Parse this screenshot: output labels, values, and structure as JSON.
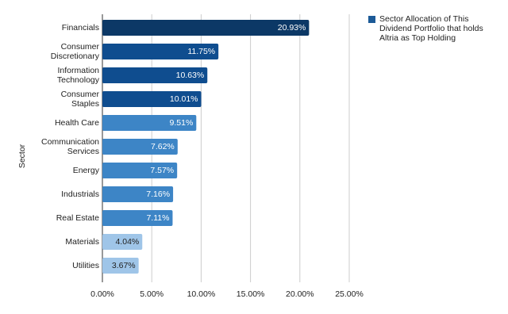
{
  "chart_data": {
    "type": "bar",
    "orientation": "horizontal",
    "y_label": "Sector",
    "categories": [
      "Financials",
      "Consumer\nDiscretionary",
      "Information\nTechnology",
      "Consumer\nStaples",
      "Health Care",
      "Communication\nServices",
      "Energy",
      "Industrials",
      "Real Estate",
      "Materials",
      "Utilities"
    ],
    "series": [
      {
        "name": "Sector Allocation of This\nDividend Portfolio that holds\nAltria as Top Holding",
        "color": "#1c5a97",
        "values": [
          20.93,
          11.75,
          10.63,
          10.01,
          9.51,
          7.62,
          7.57,
          7.16,
          7.11,
          4.04,
          3.67
        ],
        "value_labels": [
          "20.93%",
          "11.75%",
          "10.63%",
          "10.01%",
          "9.51%",
          "7.62%",
          "7.57%",
          "7.16%",
          "7.11%",
          "4.04%",
          "3.67%"
        ],
        "colors": [
          "#0c3866",
          "#0f4d8f",
          "#0f4d8f",
          "#0f4d8f",
          "#3d85c6",
          "#3d85c6",
          "#3d85c6",
          "#3d85c6",
          "#3d85c6",
          "#9fc5e8",
          "#9fc5e8"
        ]
      }
    ],
    "xlim": [
      0,
      25
    ],
    "xticks": [
      {
        "value": 0,
        "label": "0.00%"
      },
      {
        "value": 5,
        "label": "5.00%"
      },
      {
        "value": 10,
        "label": "10.00%"
      },
      {
        "value": 15,
        "label": "15.00%"
      },
      {
        "value": 20,
        "label": "20.00%"
      },
      {
        "value": 25,
        "label": "25.00%"
      }
    ],
    "grid": true,
    "legend": "top-right"
  }
}
